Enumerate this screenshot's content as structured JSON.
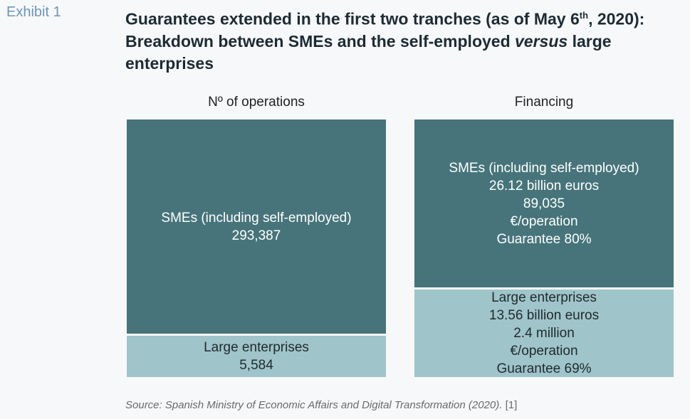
{
  "exhibit_label": "Exhibit 1",
  "title": {
    "part1": "Guarantees extended in the first two tranches (as of May 6",
    "sup": "th",
    "part2": ", 2020): Breakdown between SMEs and the self-employed ",
    "italic": "versus",
    "part3": " large enterprises"
  },
  "source": {
    "text": "Source: Spanish Ministry of Economic Affairs and Digital Transformation (2020).",
    "ref": "[1]"
  },
  "colors": {
    "sme": "#46747a",
    "large": "#9fc4c9"
  },
  "chart_data": [
    {
      "type": "bar",
      "title": "Nº of operations",
      "categories": [
        "SMEs (including self-employed)",
        "Large enterprises"
      ],
      "values": [
        293387,
        5584
      ],
      "labels": [
        [
          "SMEs (including self-employed)",
          "293,387"
        ],
        [
          "Large enterprises",
          "5,584"
        ]
      ]
    },
    {
      "type": "bar",
      "title": "Financing",
      "categories": [
        "SMEs (including self-employed)",
        "Large enterprises"
      ],
      "values": [
        26.12,
        13.56
      ],
      "labels": [
        [
          "SMEs (including self-employed)",
          "26.12 billion euros",
          "89,035",
          "€/operation",
          "Guarantee 80%"
        ],
        [
          "Large enterprises",
          "13.56 billion euros",
          "2.4 million",
          "€/operation",
          "Guarantee 69%"
        ]
      ]
    }
  ]
}
